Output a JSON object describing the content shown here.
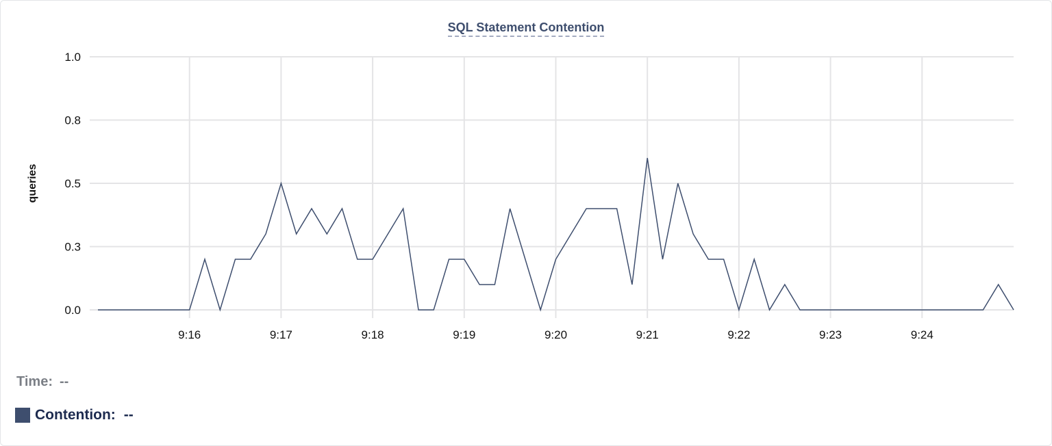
{
  "chart_data": {
    "type": "line",
    "title": "SQL Statement Contention",
    "ylabel": "queries",
    "xlabel": "",
    "ylim": [
      0,
      1
    ],
    "yticks": [
      {
        "value": 0,
        "label": "0.0"
      },
      {
        "value": 0.25,
        "label": "0.3"
      },
      {
        "value": 0.5,
        "label": "0.5"
      },
      {
        "value": 0.75,
        "label": "0.8"
      },
      {
        "value": 1,
        "label": "1.0"
      }
    ],
    "xlim": [
      "9:15:00",
      "9:25:00"
    ],
    "xticks": [
      "9:16",
      "9:17",
      "9:18",
      "9:19",
      "9:20",
      "9:21",
      "9:22",
      "9:23",
      "9:24"
    ],
    "x_interval_seconds": 10,
    "grid": true,
    "color": "#3e4e6e",
    "series": [
      {
        "name": "Contention",
        "values": [
          0,
          0,
          0,
          0,
          0,
          0,
          0,
          0.2,
          0,
          0.2,
          0.2,
          0.3,
          0.5,
          0.3,
          0.4,
          0.3,
          0.4,
          0.2,
          0.2,
          0.3,
          0.4,
          0,
          0,
          0.2,
          0.2,
          0.1,
          0.1,
          0.4,
          0.2,
          0,
          0.2,
          0.3,
          0.4,
          0.4,
          0.4,
          0.1,
          0.6,
          0.2,
          0.5,
          0.3,
          0.2,
          0.2,
          0,
          0.2,
          0,
          0.1,
          0,
          0,
          0,
          0,
          0,
          0,
          0,
          0,
          0,
          0,
          0,
          0,
          0,
          0.1,
          0
        ]
      }
    ]
  },
  "legend": {
    "time_label": "Time:",
    "time_value": "--",
    "contention_label": "Contention:",
    "contention_value": "--"
  }
}
